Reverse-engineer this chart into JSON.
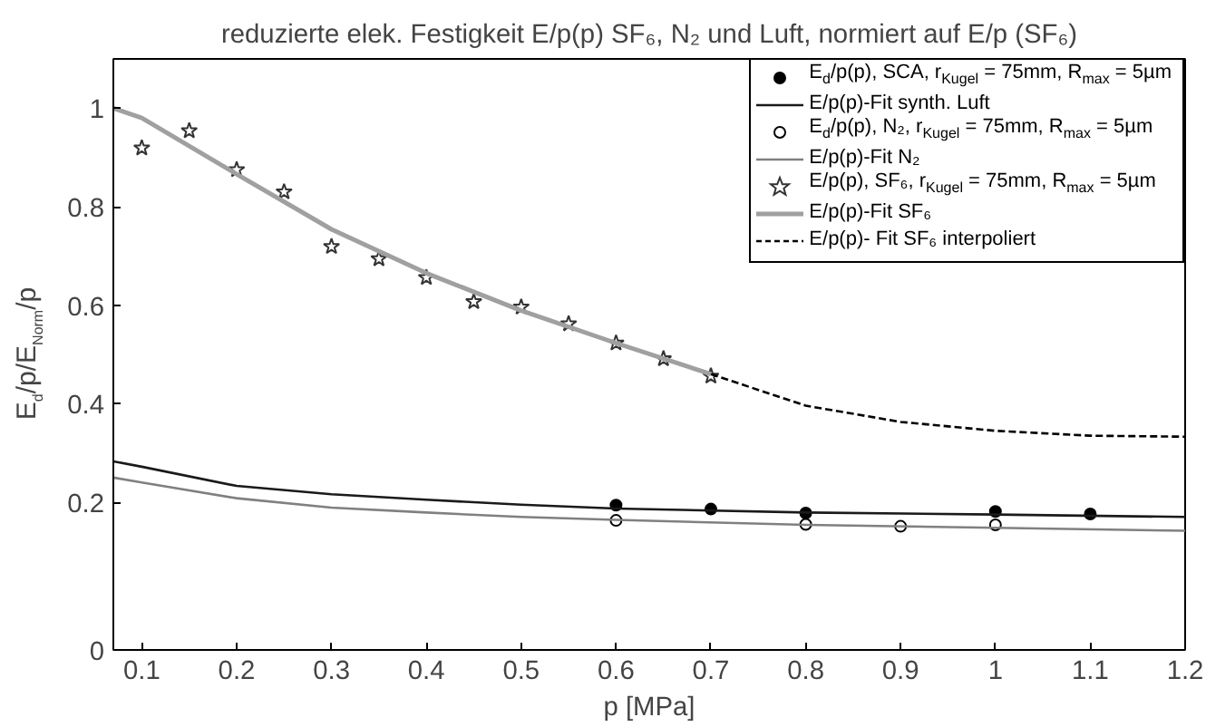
{
  "chart_data": {
    "type": "line",
    "title": "reduzierte elek. Festigkeit E/p(p) SF₆, N₂ und Luft, normiert auf E/p (SF₆)",
    "xlabel": "p [MPa]",
    "ylabel": "E$_{d}$/p/E$_{Norm}$/p",
    "xlim": [
      0.07,
      1.2
    ],
    "ylim": [
      -0.1,
      1.1
    ],
    "xticks": [
      0.1,
      0.2,
      0.3,
      0.4,
      0.5,
      0.6,
      0.7,
      0.8,
      0.9,
      1,
      1.1,
      1.2
    ],
    "yticks": [
      {
        "value": -0.1,
        "label": "0"
      },
      0.2,
      0.4,
      0.6,
      0.8,
      1
    ],
    "grid": false,
    "legend": "top right",
    "series": [
      {
        "name": "E$_{d}$/p(p), SCA, r$_{Kugel}$ = 75mm, R$_{max}$ = 5µm",
        "type": "scatter",
        "marker": "circle",
        "color": "#000000",
        "x": [
          0.6,
          0.7,
          0.8,
          1.0,
          1.1
        ],
        "values": [
          0.194,
          0.186,
          0.178,
          0.181,
          0.176
        ]
      },
      {
        "name": "E/p(p)-Fit synth. Luft",
        "color": "#1a1a1a",
        "line_style": "solid",
        "x": [
          0.07,
          0.1,
          0.2,
          0.3,
          0.4,
          0.5,
          0.6,
          0.8,
          1.0,
          1.2
        ],
        "values": [
          0.283,
          0.272,
          0.233,
          0.216,
          0.205,
          0.195,
          0.187,
          0.179,
          0.175,
          0.17
        ]
      },
      {
        "name": "E$_{d}$/p(p), N₂, r$_{Kugel}$ = 75mm, R$_{max}$ = 5µm",
        "type": "scatter",
        "marker": "circle_open",
        "color": "#000000",
        "x": [
          0.6,
          0.8,
          0.9,
          1.0
        ],
        "values": [
          0.163,
          0.155,
          0.151,
          0.154
        ]
      },
      {
        "name": "E/p(p)-Fit N₂",
        "color": "#808080",
        "line_style": "solid",
        "x": [
          0.07,
          0.1,
          0.2,
          0.3,
          0.4,
          0.5,
          0.6,
          0.8,
          1.0,
          1.2
        ],
        "values": [
          0.25,
          0.24,
          0.208,
          0.189,
          0.179,
          0.17,
          0.164,
          0.154,
          0.148,
          0.142
        ]
      },
      {
        "name": "E/p(p), SF₆, r$_{Kugel}$ = 75mm, R$_{max}$ = 5µm",
        "type": "scatter",
        "marker": "star",
        "color": "#333333",
        "x": [
          0.1,
          0.15,
          0.2,
          0.25,
          0.3,
          0.35,
          0.4,
          0.45,
          0.5,
          0.55,
          0.6,
          0.65,
          0.7
        ],
        "values": [
          0.919,
          0.954,
          0.875,
          0.83,
          0.719,
          0.694,
          0.656,
          0.607,
          0.596,
          0.562,
          0.523,
          0.491,
          0.456
        ],
        "errors": [
          0.01,
          0.01,
          0.01,
          0.01,
          0.01,
          0.01,
          0.01,
          0.01,
          0.01,
          0.01,
          0.01,
          0.01,
          0.01
        ]
      },
      {
        "name": "E/p(p)-Fit SF₆",
        "color": "#a0a0a0",
        "line_style": "solid",
        "x": [
          0.07,
          0.1,
          0.2,
          0.3,
          0.4,
          0.5,
          0.6,
          0.7
        ],
        "values": [
          1.0,
          0.98,
          0.866,
          0.754,
          0.665,
          0.589,
          0.523,
          0.46
        ]
      },
      {
        "name": "E/p(p)- Fit SF₆ interpoliert",
        "color": "#000000",
        "line_style": "dashed",
        "x": [
          0.7,
          0.8,
          0.9,
          1.0,
          1.1,
          1.2
        ],
        "values": [
          0.46,
          0.396,
          0.363,
          0.345,
          0.335,
          0.333
        ]
      }
    ]
  }
}
